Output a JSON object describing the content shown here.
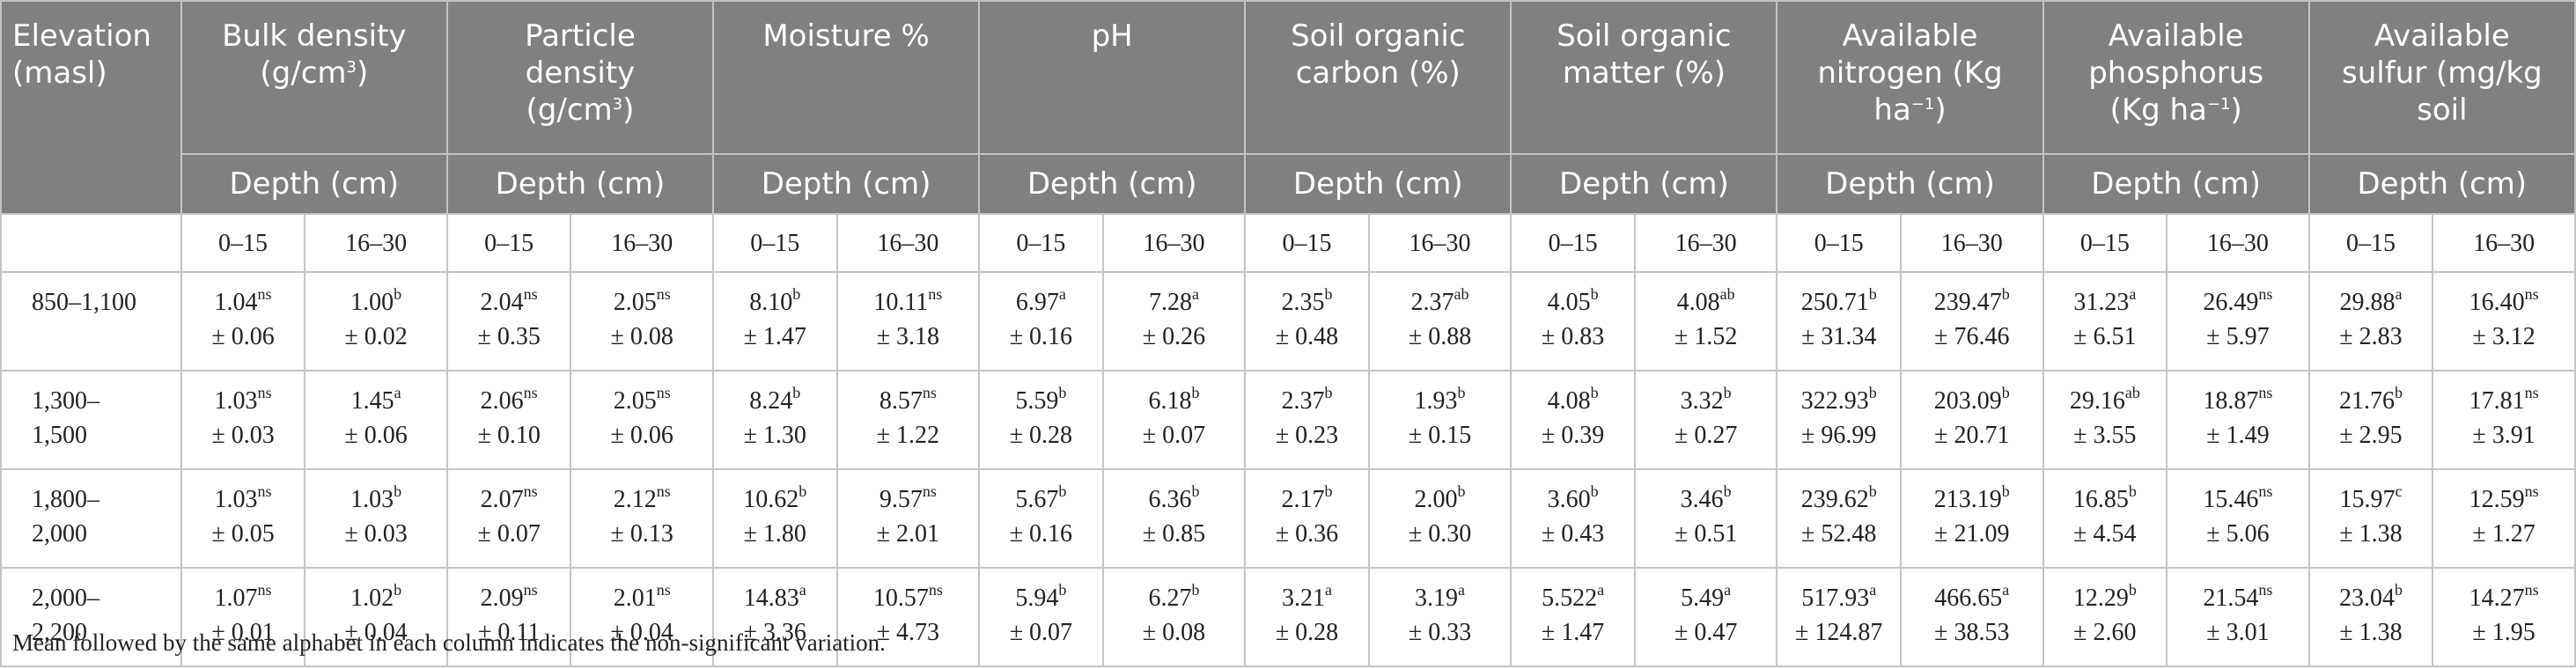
{
  "headers": [
    {
      "line1": "Elevation",
      "line2": "(masl)",
      "line3": ""
    },
    {
      "line1": "Bulk density",
      "line2": "(g/cm",
      "sup2": "3",
      "line2b": ")",
      "line3": ""
    },
    {
      "line1": "Particle",
      "line2": "density",
      "line3": "(g/cm",
      "sup3": "3",
      "line3b": ")"
    },
    {
      "line1": "Moisture %",
      "line2": "",
      "line3": ""
    },
    {
      "line1": "pH",
      "line2": "",
      "line3": ""
    },
    {
      "line1": "Soil organic",
      "line2": "carbon (%)",
      "line3": ""
    },
    {
      "line1": "Soil organic",
      "line2": "matter (%)",
      "line3": ""
    },
    {
      "line1": "Available",
      "line2": "nitrogen (Kg",
      "line3": "ha",
      "sup3": "−1",
      "line3b": ")"
    },
    {
      "line1": "Available",
      "line2": "phosphorus",
      "line3": "(Kg ha",
      "sup3": "−1",
      "line3b": ")"
    },
    {
      "line1": "Available",
      "line2": "sulfur (mg/kg",
      "line3": "soil",
      "line3b": ""
    }
  ],
  "depth_label": "Depth (cm)",
  "depth_ranges": [
    "0–15",
    "16–30"
  ],
  "rows": [
    {
      "elev1": "850–1,100",
      "elev2": "",
      "cells": [
        {
          "v": "1.04",
          "s": "ns",
          "sd": "± 0.06"
        },
        {
          "v": "1.00",
          "s": "b",
          "sd": "± 0.02"
        },
        {
          "v": "2.04",
          "s": "ns",
          "sd": "± 0.35"
        },
        {
          "v": "2.05",
          "s": "ns",
          "sd": "± 0.08"
        },
        {
          "v": "8.10",
          "s": "b",
          "sd": "± 1.47"
        },
        {
          "v": "10.11",
          "s": "ns",
          "sd": "± 3.18"
        },
        {
          "v": "6.97",
          "s": "a",
          "sd": "± 0.16"
        },
        {
          "v": "7.28",
          "s": "a",
          "sd": "± 0.26"
        },
        {
          "v": "2.35",
          "s": "b",
          "sd": "± 0.48"
        },
        {
          "v": "2.37",
          "s": "ab",
          "sd": "± 0.88"
        },
        {
          "v": "4.05",
          "s": "b",
          "sd": "± 0.83"
        },
        {
          "v": "4.08",
          "s": "ab",
          "sd": "± 1.52"
        },
        {
          "v": "250.71",
          "s": "b",
          "sd": "± 31.34"
        },
        {
          "v": "239.47",
          "s": "b",
          "sd": "± 76.46"
        },
        {
          "v": "31.23",
          "s": "a",
          "sd": "± 6.51"
        },
        {
          "v": "26.49",
          "s": "ns",
          "sd": "± 5.97"
        },
        {
          "v": "29.88",
          "s": "a",
          "sd": "± 2.83"
        },
        {
          "v": "16.40",
          "s": "ns",
          "sd": "± 3.12"
        }
      ]
    },
    {
      "elev1": "1,300–",
      "elev2": "1,500",
      "cells": [
        {
          "v": "1.03",
          "s": "ns",
          "sd": "± 0.03"
        },
        {
          "v": "1.45",
          "s": "a",
          "sd": "± 0.06"
        },
        {
          "v": "2.06",
          "s": "ns",
          "sd": "± 0.10"
        },
        {
          "v": "2.05",
          "s": "ns",
          "sd": "± 0.06"
        },
        {
          "v": "8.24",
          "s": "b",
          "sd": "± 1.30"
        },
        {
          "v": "8.57",
          "s": "ns",
          "sd": "± 1.22"
        },
        {
          "v": "5.59",
          "s": "b",
          "sd": "± 0.28"
        },
        {
          "v": "6.18",
          "s": "b",
          "sd": "± 0.07"
        },
        {
          "v": "2.37",
          "s": "b",
          "sd": "± 0.23"
        },
        {
          "v": "1.93",
          "s": "b",
          "sd": "± 0.15"
        },
        {
          "v": "4.08",
          "s": "b",
          "sd": "± 0.39"
        },
        {
          "v": "3.32",
          "s": "b",
          "sd": "± 0.27"
        },
        {
          "v": "322.93",
          "s": "b",
          "sd": "± 96.99"
        },
        {
          "v": "203.09",
          "s": "b",
          "sd": "± 20.71"
        },
        {
          "v": "29.16",
          "s": "ab",
          "sd": "± 3.55"
        },
        {
          "v": "18.87",
          "s": "ns",
          "sd": "± 1.49"
        },
        {
          "v": "21.76",
          "s": "b",
          "sd": "± 2.95"
        },
        {
          "v": "17.81",
          "s": "ns",
          "sd": "± 3.91"
        }
      ]
    },
    {
      "elev1": "1,800–",
      "elev2": "2,000",
      "cells": [
        {
          "v": "1.03",
          "s": "ns",
          "sd": "± 0.05"
        },
        {
          "v": "1.03",
          "s": "b",
          "sd": "± 0.03"
        },
        {
          "v": "2.07",
          "s": "ns",
          "sd": "± 0.07"
        },
        {
          "v": "2.12",
          "s": "ns",
          "sd": "± 0.13"
        },
        {
          "v": "10.62",
          "s": "b",
          "sd": "± 1.80"
        },
        {
          "v": "9.57",
          "s": "ns",
          "sd": "± 2.01"
        },
        {
          "v": "5.67",
          "s": "b",
          "sd": "± 0.16"
        },
        {
          "v": "6.36",
          "s": "b",
          "sd": "± 0.85"
        },
        {
          "v": "2.17",
          "s": "b",
          "sd": "± 0.36"
        },
        {
          "v": "2.00",
          "s": "b",
          "sd": "± 0.30"
        },
        {
          "v": "3.60",
          "s": "b",
          "sd": "± 0.43"
        },
        {
          "v": "3.46",
          "s": "b",
          "sd": "± 0.51"
        },
        {
          "v": "239.62",
          "s": "b",
          "sd": "± 52.48"
        },
        {
          "v": "213.19",
          "s": "b",
          "sd": "± 21.09"
        },
        {
          "v": "16.85",
          "s": "b",
          "sd": "± 4.54"
        },
        {
          "v": "15.46",
          "s": "ns",
          "sd": "± 5.06"
        },
        {
          "v": "15.97",
          "s": "c",
          "sd": "± 1.38"
        },
        {
          "v": "12.59",
          "s": "ns",
          "sd": "± 1.27"
        }
      ]
    },
    {
      "elev1": "2,000–",
      "elev2": "2,200",
      "cells": [
        {
          "v": "1.07",
          "s": "ns",
          "sd": "± 0.01"
        },
        {
          "v": "1.02",
          "s": "b",
          "sd": "± 0.04"
        },
        {
          "v": "2.09",
          "s": "ns",
          "sd": "± 0.11"
        },
        {
          "v": "2.01",
          "s": "ns",
          "sd": "± 0.04"
        },
        {
          "v": "14.83",
          "s": "a",
          "sd": "± 3.36"
        },
        {
          "v": "10.57",
          "s": "ns",
          "sd": "± 4.73"
        },
        {
          "v": "5.94",
          "s": "b",
          "sd": "± 0.07"
        },
        {
          "v": "6.27",
          "s": "b",
          "sd": "± 0.08"
        },
        {
          "v": "3.21",
          "s": "a",
          "sd": "± 0.28"
        },
        {
          "v": "3.19",
          "s": "a",
          "sd": "± 0.33"
        },
        {
          "v": "5.522",
          "s": "a",
          "sd": "± 1.47"
        },
        {
          "v": "5.49",
          "s": "a",
          "sd": "± 0.47"
        },
        {
          "v": "517.93",
          "s": "a",
          "sd": "± 124.87"
        },
        {
          "v": "466.65",
          "s": "a",
          "sd": "± 38.53"
        },
        {
          "v": "12.29",
          "s": "b",
          "sd": "± 2.60"
        },
        {
          "v": "21.54",
          "s": "ns",
          "sd": "± 3.01"
        },
        {
          "v": "23.04",
          "s": "b",
          "sd": "± 1.38"
        },
        {
          "v": "14.27",
          "s": "ns",
          "sd": "± 1.95"
        }
      ]
    }
  ],
  "footnote": "Mean followed by the same alphabet in each column indicates the non-significant variation.",
  "colors": {
    "header_bg": "#808080",
    "header_text": "#ffffff",
    "grid": "#c4c4c4",
    "body_text": "#222222"
  }
}
